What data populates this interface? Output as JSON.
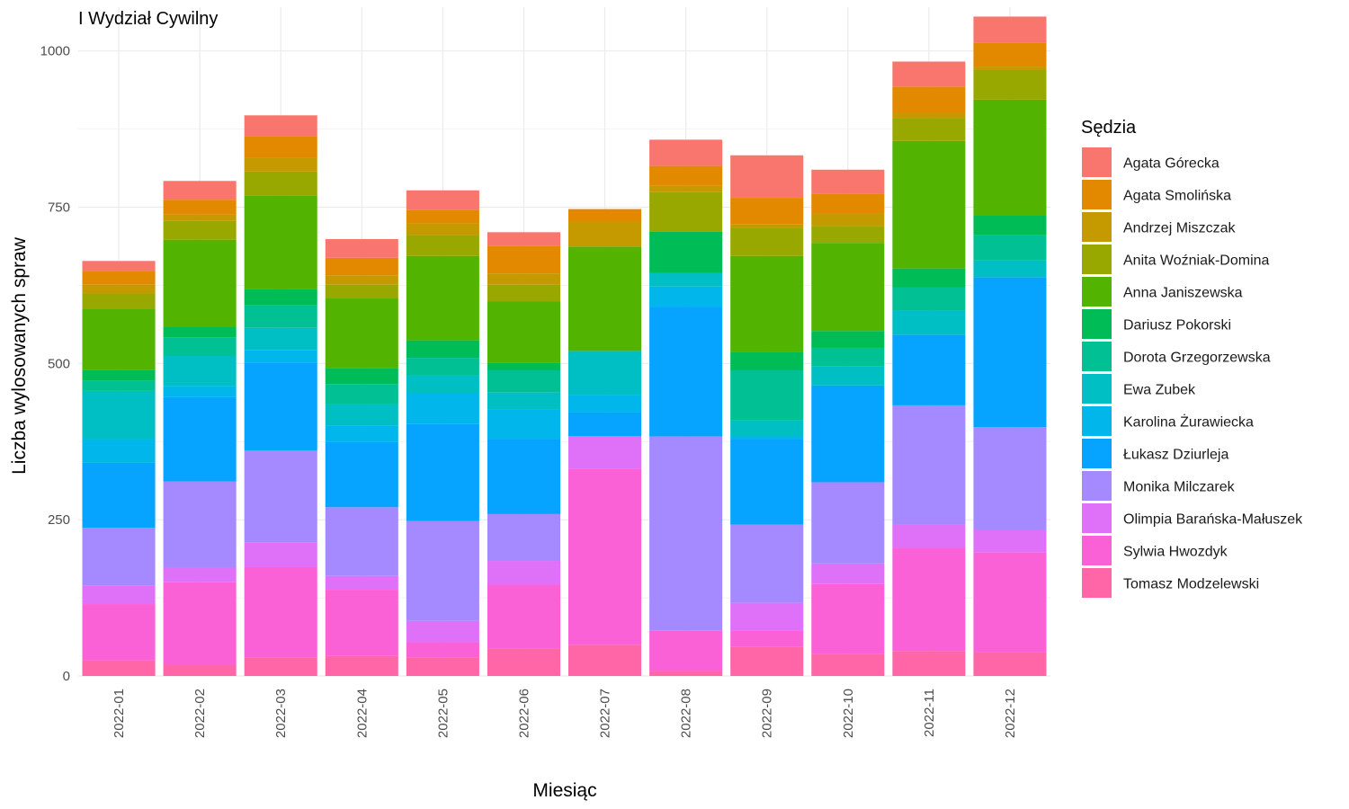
{
  "chart_data": {
    "type": "bar",
    "stacked": true,
    "title": "I Wydział Cywilny",
    "xlabel": "Miesiąc",
    "ylabel": "Liczba wylosowanych spraw",
    "ylim": [
      0,
      1070
    ],
    "yticks": [
      0,
      250,
      500,
      750,
      1000
    ],
    "grid": true,
    "legend_title": "Sędzia",
    "legend_position": "right",
    "categories": [
      "2022-01",
      "2022-02",
      "2022-03",
      "2022-04",
      "2022-05",
      "2022-06",
      "2022-07",
      "2022-08",
      "2022-09",
      "2022-10",
      "2022-11",
      "2022-12"
    ],
    "series": [
      {
        "name": "Agata Górecka",
        "color": "#F8766D",
        "values": [
          16,
          30,
          34,
          30,
          31,
          22,
          0,
          42,
          68,
          38,
          40,
          42
        ]
      },
      {
        "name": "Agata Smolińska",
        "color": "#E38900",
        "values": [
          22,
          24,
          34,
          28,
          22,
          44,
          20,
          32,
          42,
          32,
          42,
          38
        ]
      },
      {
        "name": "Andrzej Miszczak",
        "color": "#C49A00",
        "values": [
          14,
          10,
          22,
          15,
          18,
          18,
          40,
          10,
          6,
          20,
          8,
          5
        ]
      },
      {
        "name": "Anita Woźniak-Domina",
        "color": "#99A800",
        "values": [
          24,
          30,
          38,
          22,
          34,
          27,
          0,
          63,
          45,
          27,
          37,
          48
        ]
      },
      {
        "name": "Anna Janiszewska",
        "color": "#53B400",
        "values": [
          98,
          140,
          150,
          111,
          135,
          98,
          167,
          0,
          153,
          141,
          204,
          185
        ]
      },
      {
        "name": "Dariusz Pokorski",
        "color": "#00BC56",
        "values": [
          18,
          16,
          26,
          26,
          28,
          12,
          0,
          66,
          30,
          27,
          30,
          32
        ]
      },
      {
        "name": "Dorota Grzegorzewska",
        "color": "#00C094",
        "values": [
          16,
          30,
          36,
          32,
          28,
          35,
          0,
          0,
          80,
          30,
          38,
          40
        ]
      },
      {
        "name": "Ewa Zubek",
        "color": "#00BFC4",
        "values": [
          77,
          48,
          36,
          35,
          28,
          27,
          70,
          22,
          25,
          30,
          38,
          27
        ]
      },
      {
        "name": "Karolina Żurawiecka",
        "color": "#00B6EB",
        "values": [
          38,
          18,
          20,
          25,
          50,
          48,
          28,
          32,
          5,
          0,
          0,
          0
        ]
      },
      {
        "name": "Łukasz Dziurleja",
        "color": "#06A4FF",
        "values": [
          104,
          135,
          140,
          105,
          155,
          120,
          38,
          208,
          137,
          155,
          113,
          240
        ]
      },
      {
        "name": "Monika Milczarek",
        "color": "#A58AFF",
        "values": [
          92,
          137,
          147,
          110,
          160,
          75,
          0,
          310,
          125,
          130,
          190,
          165
        ]
      },
      {
        "name": "Olimpia Barańska-Małuszek",
        "color": "#DF70F8",
        "values": [
          30,
          24,
          40,
          22,
          34,
          38,
          52,
          0,
          45,
          33,
          38,
          35
        ]
      },
      {
        "name": "Sylwia Hwozdyk",
        "color": "#FB61D7",
        "values": [
          90,
          132,
          144,
          106,
          24,
          102,
          282,
          65,
          25,
          112,
          165,
          160
        ]
      },
      {
        "name": "Tomasz Modzelewski",
        "color": "#FF66A8",
        "values": [
          25,
          18,
          30,
          32,
          30,
          44,
          50,
          8,
          47,
          35,
          40,
          38
        ]
      }
    ]
  }
}
